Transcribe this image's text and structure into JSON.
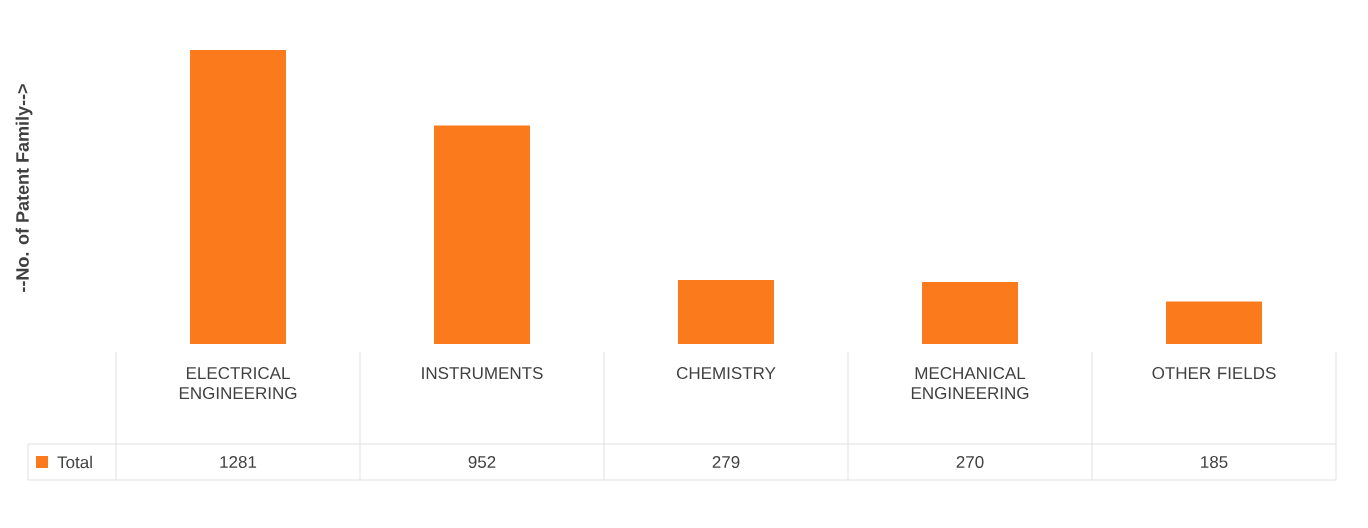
{
  "chart_data": {
    "type": "bar",
    "ylabel": "--No. of Patent Family-->",
    "categories": [
      "ELECTRICAL ENGINEERING",
      "INSTRUMENTS",
      "CHEMISTRY",
      "MECHANICAL ENGINEERING",
      "OTHER FIELDS"
    ],
    "series": [
      {
        "name": "Total",
        "color": "#fb7a1c",
        "values": [
          1281,
          952,
          279,
          270,
          185
        ]
      }
    ],
    "data_labels": true
  }
}
